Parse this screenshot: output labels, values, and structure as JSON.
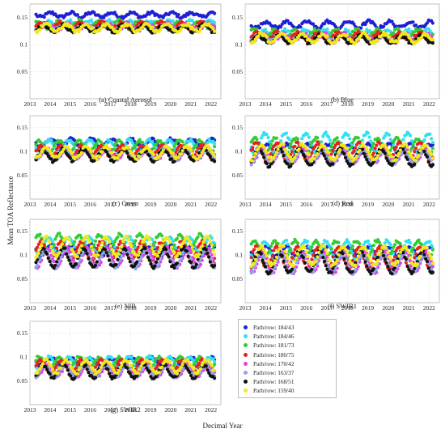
{
  "figure": {
    "xlabel": "Decimal Year",
    "ylabel": "Mean TOA Reflectance"
  },
  "legend": {
    "entries": [
      {
        "label": "Path/row: 184/43",
        "color": "#1f1fd6"
      },
      {
        "label": "Path/row: 184/46",
        "color": "#33e0f0"
      },
      {
        "label": "Path/row: 181/73",
        "color": "#33cc33"
      },
      {
        "label": "Path/row: 180/75",
        "color": "#e6221e"
      },
      {
        "label": "Path/row: 170/42",
        "color": "#e040e8"
      },
      {
        "label": "Path/row: 163/37",
        "color": "#8fa6e8"
      },
      {
        "label": "Path/row: 168/51",
        "color": "#111111"
      },
      {
        "label": "Path/row: 159/40",
        "color": "#f5e81a"
      }
    ]
  },
  "chart_data": [
    {
      "type": "scatter",
      "title": "(a) Coastal Aerosol",
      "xlim": [
        2013,
        2022.5
      ],
      "ylim": [
        0,
        0.175
      ],
      "xticks": [
        2013,
        2014,
        2015,
        2016,
        2017,
        2018,
        2019,
        2020,
        2021,
        2022
      ],
      "yticks": [
        0.05,
        0.1,
        0.15
      ],
      "grid": true,
      "series": [
        {
          "name": "Path/row: 184/43",
          "mean": 0.155,
          "amplitude": 0.004,
          "phase": 0.2
        },
        {
          "name": "Path/row: 184/46",
          "mean": 0.138,
          "amplitude": 0.006,
          "phase": 0.3
        },
        {
          "name": "Path/row: 181/73",
          "mean": 0.137,
          "amplitude": 0.007,
          "phase": 0.8
        },
        {
          "name": "Path/row: 180/75",
          "mean": 0.135,
          "amplitude": 0.006,
          "phase": 0.7
        },
        {
          "name": "Path/row: 170/42",
          "mean": 0.133,
          "amplitude": 0.006,
          "phase": 0.4
        },
        {
          "name": "Path/row: 163/37",
          "mean": 0.132,
          "amplitude": 0.005,
          "phase": 0.5
        },
        {
          "name": "Path/row: 168/51",
          "mean": 0.13,
          "amplitude": 0.006,
          "phase": 0.6
        },
        {
          "name": "Path/row: 159/40",
          "mean": 0.131,
          "amplitude": 0.007,
          "phase": 0.45
        }
      ]
    },
    {
      "type": "scatter",
      "title": "(b) Blue",
      "xlim": [
        2013,
        2022.5
      ],
      "ylim": [
        0,
        0.175
      ],
      "xticks": [
        2013,
        2014,
        2015,
        2016,
        2017,
        2018,
        2019,
        2020,
        2021,
        2022
      ],
      "yticks": [
        0.05,
        0.1,
        0.15
      ],
      "grid": true,
      "series": [
        {
          "name": "Path/row: 184/43",
          "mean": 0.137,
          "amplitude": 0.006,
          "phase": 0.2
        },
        {
          "name": "Path/row: 184/46",
          "mean": 0.12,
          "amplitude": 0.007,
          "phase": 0.3
        },
        {
          "name": "Path/row: 181/73",
          "mean": 0.12,
          "amplitude": 0.008,
          "phase": 0.8
        },
        {
          "name": "Path/row: 180/75",
          "mean": 0.115,
          "amplitude": 0.007,
          "phase": 0.7
        },
        {
          "name": "Path/row: 170/42",
          "mean": 0.113,
          "amplitude": 0.007,
          "phase": 0.4
        },
        {
          "name": "Path/row: 163/37",
          "mean": 0.112,
          "amplitude": 0.006,
          "phase": 0.5
        },
        {
          "name": "Path/row: 168/51",
          "mean": 0.11,
          "amplitude": 0.007,
          "phase": 0.6
        },
        {
          "name": "Path/row: 159/40",
          "mean": 0.112,
          "amplitude": 0.008,
          "phase": 0.45
        }
      ]
    },
    {
      "type": "scatter",
      "title": "(c) Green",
      "xlim": [
        2013,
        2022.5
      ],
      "ylim": [
        0,
        0.175
      ],
      "xticks": [
        2013,
        2014,
        2015,
        2016,
        2017,
        2018,
        2019,
        2020,
        2021,
        2022
      ],
      "yticks": [
        0.05,
        0.1,
        0.15
      ],
      "grid": true,
      "series": [
        {
          "name": "Path/row: 184/43",
          "mean": 0.118,
          "amplitude": 0.008,
          "phase": 0.2
        },
        {
          "name": "Path/row: 184/46",
          "mean": 0.112,
          "amplitude": 0.012,
          "phase": 0.3
        },
        {
          "name": "Path/row: 181/73",
          "mean": 0.11,
          "amplitude": 0.012,
          "phase": 0.8
        },
        {
          "name": "Path/row: 180/75",
          "mean": 0.1,
          "amplitude": 0.012,
          "phase": 0.7
        },
        {
          "name": "Path/row: 170/42",
          "mean": 0.095,
          "amplitude": 0.01,
          "phase": 0.4
        },
        {
          "name": "Path/row: 163/37",
          "mean": 0.093,
          "amplitude": 0.01,
          "phase": 0.5
        },
        {
          "name": "Path/row: 168/51",
          "mean": 0.092,
          "amplitude": 0.012,
          "phase": 0.6
        },
        {
          "name": "Path/row: 159/40",
          "mean": 0.098,
          "amplitude": 0.012,
          "phase": 0.45
        }
      ]
    },
    {
      "type": "scatter",
      "title": "(d) Red",
      "xlim": [
        2013,
        2022.5
      ],
      "ylim": [
        0,
        0.175
      ],
      "xticks": [
        2013,
        2014,
        2015,
        2016,
        2017,
        2018,
        2019,
        2020,
        2021,
        2022
      ],
      "yticks": [
        0.05,
        0.1,
        0.15
      ],
      "grid": true,
      "series": [
        {
          "name": "Path/row: 184/43",
          "mean": 0.105,
          "amplitude": 0.01,
          "phase": 0.2
        },
        {
          "name": "Path/row: 184/46",
          "mean": 0.118,
          "amplitude": 0.02,
          "phase": 0.3
        },
        {
          "name": "Path/row: 181/73",
          "mean": 0.11,
          "amplitude": 0.018,
          "phase": 0.8
        },
        {
          "name": "Path/row: 180/75",
          "mean": 0.1,
          "amplitude": 0.018,
          "phase": 0.7
        },
        {
          "name": "Path/row: 170/42",
          "mean": 0.092,
          "amplitude": 0.014,
          "phase": 0.4
        },
        {
          "name": "Path/row: 163/37",
          "mean": 0.088,
          "amplitude": 0.014,
          "phase": 0.5
        },
        {
          "name": "Path/row: 168/51",
          "mean": 0.088,
          "amplitude": 0.018,
          "phase": 0.6
        },
        {
          "name": "Path/row: 159/40",
          "mean": 0.098,
          "amplitude": 0.016,
          "phase": 0.45
        }
      ]
    },
    {
      "type": "scatter",
      "title": "(e) NIR",
      "xlim": [
        2013,
        2022.5
      ],
      "ylim": [
        0,
        0.175
      ],
      "xticks": [
        2013,
        2014,
        2015,
        2016,
        2017,
        2018,
        2019,
        2020,
        2021,
        2022
      ],
      "yticks": [
        0.05,
        0.1,
        0.15
      ],
      "grid": true,
      "series": [
        {
          "name": "Path/row: 184/43",
          "mean": 0.11,
          "amplitude": 0.012,
          "phase": 0.2
        },
        {
          "name": "Path/row: 184/46",
          "mean": 0.12,
          "amplitude": 0.018,
          "phase": 0.3
        },
        {
          "name": "Path/row: 181/73",
          "mean": 0.125,
          "amplitude": 0.018,
          "phase": 0.8
        },
        {
          "name": "Path/row: 180/75",
          "mean": 0.108,
          "amplitude": 0.02,
          "phase": 0.7
        },
        {
          "name": "Path/row: 170/42",
          "mean": 0.095,
          "amplitude": 0.02,
          "phase": 0.4
        },
        {
          "name": "Path/row: 163/37",
          "mean": 0.092,
          "amplitude": 0.018,
          "phase": 0.5
        },
        {
          "name": "Path/row: 168/51",
          "mean": 0.095,
          "amplitude": 0.02,
          "phase": 0.6
        },
        {
          "name": "Path/row: 159/40",
          "mean": 0.118,
          "amplitude": 0.02,
          "phase": 0.45
        }
      ]
    },
    {
      "type": "scatter",
      "title": "(f) SWIR1",
      "xlim": [
        2013,
        2022.5
      ],
      "ylim": [
        0,
        0.175
      ],
      "xticks": [
        2013,
        2014,
        2015,
        2016,
        2017,
        2018,
        2019,
        2020,
        2021,
        2022
      ],
      "yticks": [
        0.05,
        0.1,
        0.15
      ],
      "grid": true,
      "series": [
        {
          "name": "Path/row: 184/43",
          "mean": 0.105,
          "amplitude": 0.012,
          "phase": 0.2
        },
        {
          "name": "Path/row: 184/46",
          "mean": 0.11,
          "amplitude": 0.02,
          "phase": 0.3
        },
        {
          "name": "Path/row: 181/73",
          "mean": 0.112,
          "amplitude": 0.018,
          "phase": 0.8
        },
        {
          "name": "Path/row: 180/75",
          "mean": 0.095,
          "amplitude": 0.022,
          "phase": 0.7
        },
        {
          "name": "Path/row: 170/42",
          "mean": 0.085,
          "amplitude": 0.022,
          "phase": 0.4
        },
        {
          "name": "Path/row: 163/37",
          "mean": 0.082,
          "amplitude": 0.02,
          "phase": 0.5
        },
        {
          "name": "Path/row: 168/51",
          "mean": 0.085,
          "amplitude": 0.022,
          "phase": 0.6
        },
        {
          "name": "Path/row: 159/40",
          "mean": 0.098,
          "amplitude": 0.02,
          "phase": 0.45
        }
      ]
    },
    {
      "type": "scatter",
      "title": "(g) SWIR2",
      "xlim": [
        2013,
        2022.5
      ],
      "ylim": [
        0,
        0.175
      ],
      "xticks": [
        2013,
        2014,
        2015,
        2016,
        2017,
        2018,
        2019,
        2020,
        2021,
        2022
      ],
      "yticks": [
        0.05,
        0.1,
        0.15
      ],
      "grid": true,
      "series": [
        {
          "name": "Path/row: 184/43",
          "mean": 0.09,
          "amplitude": 0.008,
          "phase": 0.2
        },
        {
          "name": "Path/row: 184/46",
          "mean": 0.088,
          "amplitude": 0.012,
          "phase": 0.3
        },
        {
          "name": "Path/row: 181/73",
          "mean": 0.088,
          "amplitude": 0.012,
          "phase": 0.8
        },
        {
          "name": "Path/row: 180/75",
          "mean": 0.08,
          "amplitude": 0.014,
          "phase": 0.7
        },
        {
          "name": "Path/row: 170/42",
          "mean": 0.072,
          "amplitude": 0.012,
          "phase": 0.4
        },
        {
          "name": "Path/row: 163/37",
          "mean": 0.07,
          "amplitude": 0.012,
          "phase": 0.5
        },
        {
          "name": "Path/row: 168/51",
          "mean": 0.07,
          "amplitude": 0.014,
          "phase": 0.6
        },
        {
          "name": "Path/row: 159/40",
          "mean": 0.08,
          "amplitude": 0.014,
          "phase": 0.45
        }
      ]
    }
  ]
}
